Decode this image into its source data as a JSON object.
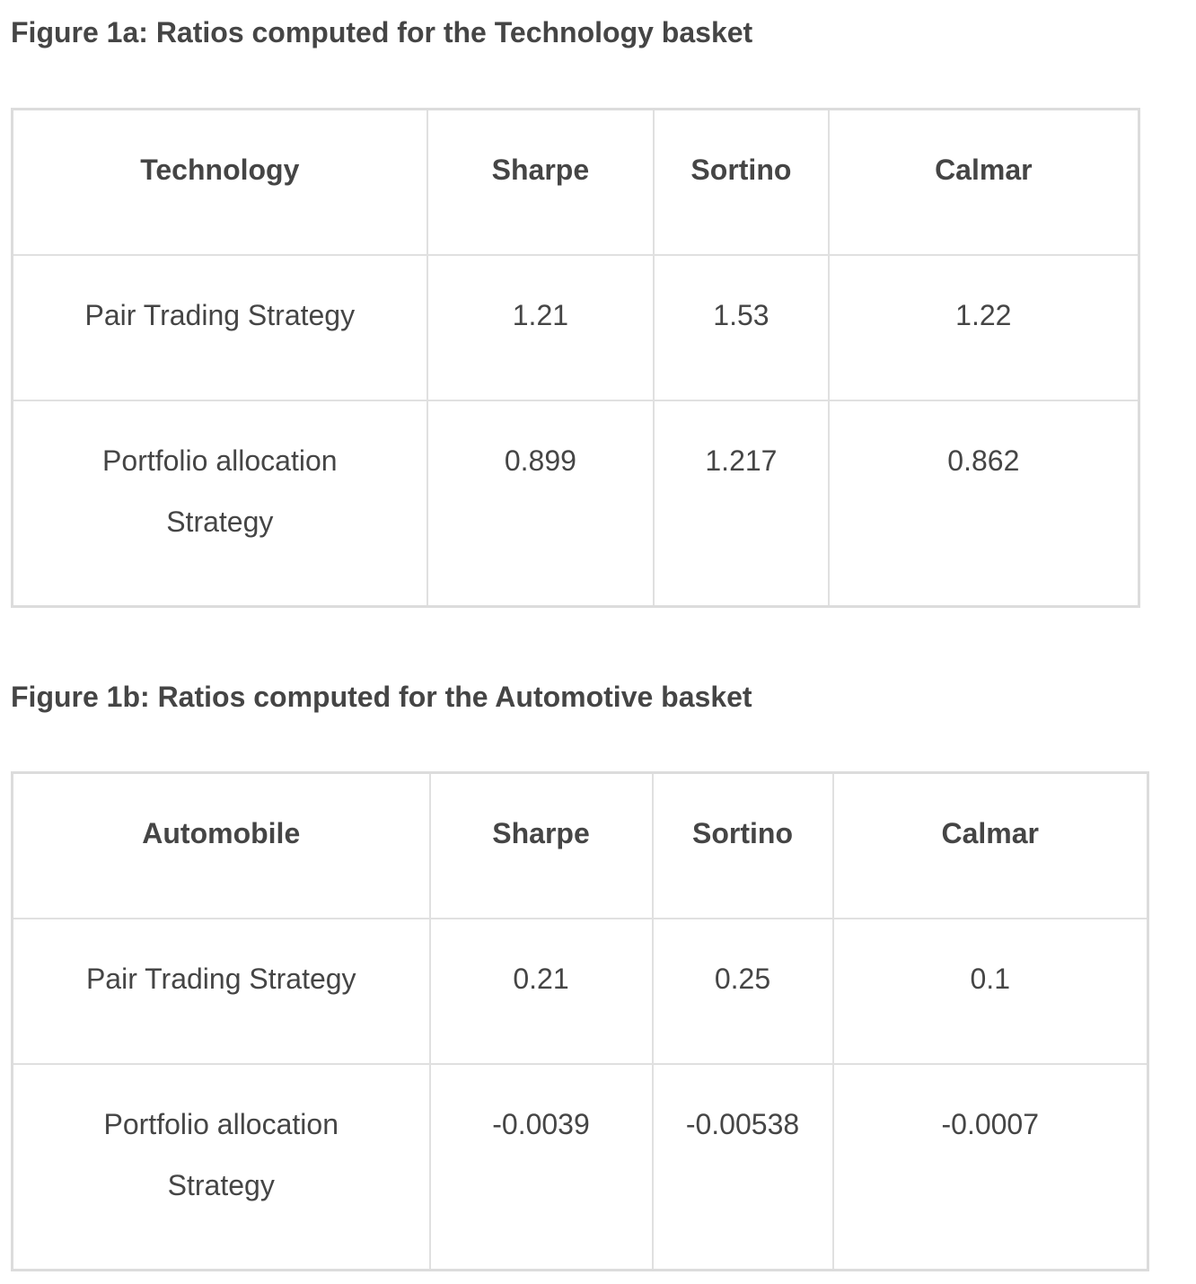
{
  "figure_a": {
    "caption": "Figure 1a: Ratios computed for the Technology basket",
    "headers": [
      "Technology",
      "Sharpe",
      "Sortino",
      "Calmar"
    ],
    "rows": [
      [
        "Pair Trading Strategy",
        "1.21",
        "1.53",
        "1.22"
      ],
      [
        "Portfolio allocation Strategy",
        "0.899",
        "1.217",
        "0.862"
      ]
    ]
  },
  "figure_b": {
    "caption": "Figure 1b: Ratios computed for the Automotive basket",
    "headers": [
      "Automobile",
      "Sharpe",
      "Sortino",
      "Calmar"
    ],
    "rows": [
      [
        "Pair Trading Strategy",
        "0.21",
        "0.25",
        "0.1"
      ],
      [
        "Portfolio allocation Strategy",
        "-0.0039",
        "-0.00538",
        "-0.0007"
      ]
    ]
  }
}
